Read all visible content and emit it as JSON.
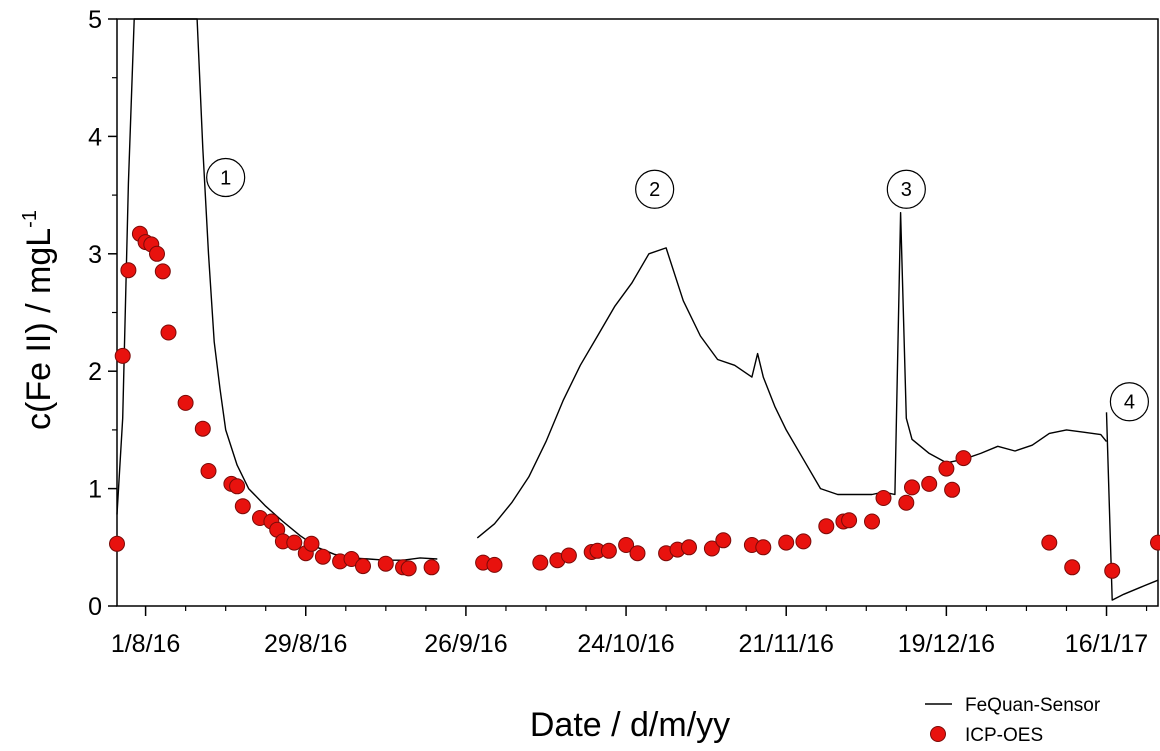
{
  "chart_data": {
    "type": "scatter",
    "xlabel": "Date / d/m/yy",
    "ylabel": "c(Fe II) / mgL",
    "ylabel_sup": "-1",
    "x_tick_labels": [
      "1/8/16",
      "29/8/16",
      "26/9/16",
      "24/10/16",
      "21/11/16",
      "19/12/16",
      "16/1/17"
    ],
    "x_tick_dates": [
      "2016-08-01",
      "2016-08-29",
      "2016-09-26",
      "2016-10-24",
      "2016-11-21",
      "2016-12-19",
      "2017-01-16"
    ],
    "xlim": [
      "2016-07-27",
      "2017-01-25"
    ],
    "ylim": [
      0,
      5
    ],
    "y_ticks": [
      0,
      1,
      2,
      3,
      4,
      5
    ],
    "legend_position": "bottom-right",
    "grid": false,
    "series": [
      {
        "name": "FeQuan-Sensor",
        "style": "line",
        "color": "#000000",
        "segments": [
          {
            "x": [
              "2016-07-27",
              "2016-07-28",
              "2016-07-29",
              "2016-07-30",
              "2016-08-10",
              "2016-08-11",
              "2016-08-12",
              "2016-08-13",
              "2016-08-14",
              "2016-08-15",
              "2016-08-17",
              "2016-08-19",
              "2016-08-22",
              "2016-08-25",
              "2016-08-28",
              "2016-08-31",
              "2016-09-03",
              "2016-09-06",
              "2016-09-09",
              "2016-09-12",
              "2016-09-15",
              "2016-09-18",
              "2016-09-21"
            ],
            "y": [
              0.78,
              1.6,
              3.6,
              5.0,
              5.0,
              3.9,
              3.0,
              2.25,
              1.85,
              1.5,
              1.2,
              1.0,
              0.85,
              0.72,
              0.6,
              0.5,
              0.44,
              0.41,
              0.4,
              0.39,
              0.39,
              0.41,
              0.4
            ]
          },
          {
            "x": [
              "2016-09-28",
              "2016-10-01",
              "2016-10-04",
              "2016-10-07",
              "2016-10-10",
              "2016-10-13",
              "2016-10-16",
              "2016-10-19",
              "2016-10-22",
              "2016-10-25",
              "2016-10-28",
              "2016-10-31",
              "2016-11-03",
              "2016-11-06",
              "2016-11-09",
              "2016-11-12",
              "2016-11-15",
              "2016-11-16",
              "2016-11-17",
              "2016-11-19",
              "2016-11-21",
              "2016-11-24",
              "2016-11-27",
              "2016-11-30",
              "2016-12-03",
              "2016-12-06",
              "2016-12-08",
              "2016-12-10",
              "2016-12-11",
              "2016-12-12",
              "2016-12-13",
              "2016-12-16",
              "2016-12-19",
              "2016-12-22",
              "2016-12-25",
              "2016-12-28",
              "2016-12-31",
              "2017-01-03",
              "2017-01-06",
              "2017-01-09",
              "2017-01-12",
              "2017-01-15",
              "2017-01-16"
            ],
            "y": [
              0.58,
              0.7,
              0.88,
              1.1,
              1.4,
              1.75,
              2.05,
              2.3,
              2.55,
              2.75,
              3.0,
              3.05,
              2.6,
              2.3,
              2.1,
              2.05,
              1.95,
              2.15,
              1.95,
              1.7,
              1.5,
              1.25,
              1.0,
              0.95,
              0.95,
              0.95,
              0.97,
              0.95,
              3.35,
              1.6,
              1.42,
              1.3,
              1.22,
              1.25,
              1.3,
              1.36,
              1.32,
              1.37,
              1.47,
              1.5,
              1.48,
              1.46,
              1.4
            ]
          },
          {
            "x": [
              "2017-01-16",
              "2017-01-17",
              "2017-01-19",
              "2017-01-22",
              "2017-01-25"
            ],
            "y": [
              1.65,
              0.05,
              0.1,
              0.16,
              0.22
            ]
          }
        ]
      },
      {
        "name": "ICP-OES",
        "style": "markers",
        "color": "#e8120e",
        "x": [
          "2016-07-27",
          "2016-07-28",
          "2016-07-29",
          "2016-07-31",
          "2016-08-01",
          "2016-08-02",
          "2016-08-03",
          "2016-08-04",
          "2016-08-05",
          "2016-08-08",
          "2016-08-11",
          "2016-08-12",
          "2016-08-16",
          "2016-08-17",
          "2016-08-18",
          "2016-08-21",
          "2016-08-23",
          "2016-08-24",
          "2016-08-25",
          "2016-08-27",
          "2016-08-29",
          "2016-08-30",
          "2016-09-01",
          "2016-09-04",
          "2016-09-06",
          "2016-09-08",
          "2016-09-12",
          "2016-09-15",
          "2016-09-16",
          "2016-09-20",
          "2016-09-29",
          "2016-10-01",
          "2016-10-09",
          "2016-10-12",
          "2016-10-14",
          "2016-10-18",
          "2016-10-19",
          "2016-10-21",
          "2016-10-24",
          "2016-10-26",
          "2016-10-31",
          "2016-11-02",
          "2016-11-04",
          "2016-11-08",
          "2016-11-10",
          "2016-11-15",
          "2016-11-17",
          "2016-11-21",
          "2016-11-24",
          "2016-11-28",
          "2016-12-01",
          "2016-12-02",
          "2016-12-06",
          "2016-12-08",
          "2016-12-12",
          "2016-12-13",
          "2016-12-16",
          "2016-12-19",
          "2016-12-20",
          "2016-12-22",
          "2017-01-06",
          "2017-01-10",
          "2017-01-17",
          "2017-01-25"
        ],
        "y": [
          0.53,
          2.13,
          2.86,
          3.17,
          3.1,
          3.08,
          3.0,
          2.85,
          2.33,
          1.73,
          1.51,
          1.15,
          1.04,
          1.02,
          0.85,
          0.75,
          0.72,
          0.65,
          0.55,
          0.54,
          0.45,
          0.53,
          0.42,
          0.38,
          0.4,
          0.34,
          0.36,
          0.33,
          0.32,
          0.33,
          0.37,
          0.35,
          0.37,
          0.39,
          0.43,
          0.46,
          0.47,
          0.47,
          0.52,
          0.45,
          0.45,
          0.48,
          0.5,
          0.49,
          0.56,
          0.52,
          0.5,
          0.54,
          0.55,
          0.68,
          0.72,
          0.73,
          0.72,
          0.92,
          0.88,
          1.01,
          1.04,
          1.17,
          0.99,
          1.26,
          0.54,
          0.33,
          0.3,
          0.54
        ]
      }
    ],
    "annotations": [
      {
        "label": "1",
        "x": "2016-08-15",
        "y": 3.65
      },
      {
        "label": "2",
        "x": "2016-10-29",
        "y": 3.55
      },
      {
        "label": "3",
        "x": "2016-12-12",
        "y": 3.55
      },
      {
        "label": "4",
        "x": "2017-01-20",
        "y": 1.74
      }
    ]
  }
}
